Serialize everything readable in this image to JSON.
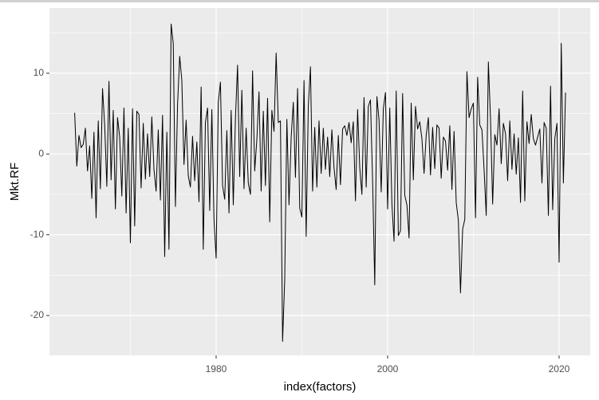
{
  "chart_data": {
    "type": "line",
    "xlabel": "index(factors)",
    "ylabel": "Mkt.RF",
    "color": "#000000",
    "grid": true,
    "xlim": [
      1960.56,
      2023.63
    ],
    "ylim": [
      -24.93,
      18.08
    ],
    "xticks": [
      1980,
      2000,
      2020
    ],
    "yticks": [
      -20,
      -10,
      0,
      10
    ],
    "x_minor_breaks": [
      1970,
      1990,
      2010
    ],
    "y_minor_breaks": [
      -15,
      -5,
      5,
      15
    ],
    "x": [
      1963.5,
      1963.75,
      1964,
      1964.25,
      1964.5,
      1964.75,
      1965,
      1965.25,
      1965.5,
      1965.75,
      1966,
      1966.25,
      1966.5,
      1966.75,
      1967,
      1967.25,
      1967.5,
      1967.75,
      1968,
      1968.25,
      1968.5,
      1968.75,
      1969,
      1969.25,
      1969.5,
      1969.75,
      1970,
      1970.25,
      1970.5,
      1970.75,
      1971,
      1971.25,
      1971.5,
      1971.75,
      1972,
      1972.25,
      1972.5,
      1972.75,
      1973,
      1973.25,
      1973.5,
      1973.75,
      1974,
      1974.25,
      1974.5,
      1974.75,
      1975,
      1975.25,
      1975.5,
      1975.75,
      1976,
      1976.25,
      1976.5,
      1976.75,
      1977,
      1977.25,
      1977.5,
      1977.75,
      1978,
      1978.25,
      1978.5,
      1978.75,
      1979,
      1979.25,
      1979.5,
      1979.75,
      1980,
      1980.25,
      1980.5,
      1980.75,
      1981,
      1981.25,
      1981.5,
      1981.75,
      1982,
      1982.25,
      1982.5,
      1982.75,
      1983,
      1983.25,
      1983.5,
      1983.75,
      1984,
      1984.25,
      1984.5,
      1984.75,
      1985,
      1985.25,
      1985.5,
      1985.75,
      1986,
      1986.25,
      1986.5,
      1986.75,
      1987,
      1987.25,
      1987.5,
      1987.75,
      1988,
      1988.25,
      1988.5,
      1988.75,
      1989,
      1989.25,
      1989.5,
      1989.75,
      1990,
      1990.25,
      1990.5,
      1990.75,
      1991,
      1991.25,
      1991.5,
      1991.75,
      1992,
      1992.25,
      1992.5,
      1992.75,
      1993,
      1993.25,
      1993.5,
      1993.75,
      1994,
      1994.25,
      1994.5,
      1994.75,
      1995,
      1995.25,
      1995.5,
      1995.75,
      1996,
      1996.25,
      1996.5,
      1996.75,
      1997,
      1997.25,
      1997.5,
      1997.75,
      1998,
      1998.25,
      1998.5,
      1998.75,
      1999,
      1999.25,
      1999.5,
      1999.75,
      2000,
      2000.25,
      2000.5,
      2000.75,
      2001,
      2001.25,
      2001.5,
      2001.75,
      2002,
      2002.25,
      2002.5,
      2002.75,
      2003,
      2003.25,
      2003.5,
      2003.75,
      2004,
      2004.25,
      2004.5,
      2004.75,
      2005,
      2005.25,
      2005.5,
      2005.75,
      2006,
      2006.25,
      2006.5,
      2006.75,
      2007,
      2007.25,
      2007.5,
      2007.75,
      2008,
      2008.25,
      2008.5,
      2008.75,
      2009,
      2009.25,
      2009.5,
      2009.75,
      2010,
      2010.25,
      2010.5,
      2010.75,
      2011,
      2011.25,
      2011.5,
      2011.75,
      2012,
      2012.25,
      2012.5,
      2012.75,
      2013,
      2013.25,
      2013.5,
      2013.75,
      2014,
      2014.25,
      2014.5,
      2014.75,
      2015,
      2015.25,
      2015.5,
      2015.75,
      2016,
      2016.25,
      2016.5,
      2016.75,
      2017,
      2017.25,
      2017.5,
      2017.75,
      2018,
      2018.25,
      2018.5,
      2018.75,
      2019,
      2019.25,
      2019.5,
      2019.75,
      2020,
      2020.25,
      2020.5,
      2020.75
    ],
    "values": [
      5.1,
      -1.5,
      2.3,
      0.8,
      1.2,
      3.2,
      -2.1,
      1.0,
      -5.5,
      2.7,
      -7.9,
      4.1,
      -4.3,
      8.1,
      3.6,
      -4.0,
      9.0,
      -3.2,
      5.4,
      -6.8,
      4.5,
      2.1,
      -5.2,
      5.7,
      -7.3,
      3.2,
      -11.0,
      5.6,
      -8.9,
      5.3,
      4.9,
      -4.2,
      3.8,
      -3.1,
      2.5,
      -2.8,
      4.6,
      -1.9,
      -4.6,
      3.0,
      -5.7,
      4.8,
      -12.7,
      2.7,
      -11.8,
      16.1,
      13.7,
      -6.5,
      6.1,
      12.1,
      9.1,
      -1.3,
      4.2,
      -2.7,
      -4.1,
      2.2,
      -3.3,
      1.5,
      -5.9,
      8.3,
      -11.8,
      3.9,
      5.7,
      -7.0,
      5.5,
      -8.1,
      -12.9,
      6.4,
      8.9,
      -3.9,
      -5.6,
      2.9,
      -7.3,
      5.4,
      -6.3,
      4.4,
      11.0,
      -2.8,
      7.9,
      -4.3,
      3.2,
      -3.6,
      -5.0,
      10.3,
      -2.1,
      1.8,
      7.7,
      -4.6,
      5.3,
      -3.9,
      6.9,
      -8.4,
      5.4,
      2.8,
      12.5,
      3.9,
      4.1,
      -23.2,
      -15.5,
      4.3,
      -6.3,
      2.0,
      6.4,
      -2.9,
      8.1,
      -6.7,
      -7.8,
      9.1,
      -10.2,
      5.9,
      10.8,
      -4.6,
      3.3,
      -4.1,
      4.1,
      -2.4,
      3.2,
      -1.9,
      2.1,
      -2.8,
      3.0,
      -1.7,
      -4.4,
      2.3,
      -3.8,
      3.1,
      3.5,
      2.3,
      3.9,
      1.4,
      4.0,
      -5.8,
      5.5,
      -1.7,
      -5.0,
      7.0,
      -4.1,
      5.9,
      6.7,
      -3.4,
      -16.2,
      7.1,
      4.2,
      -4.7,
      5.6,
      7.6,
      -6.8,
      5.7,
      -6.2,
      -10.8,
      7.8,
      -10.1,
      -9.5,
      7.5,
      -5.1,
      -6.3,
      -10.4,
      6.3,
      -3.2,
      5.9,
      3.1,
      4.0,
      1.9,
      -2.4,
      2.3,
      4.5,
      -2.6,
      3.3,
      -1.8,
      3.6,
      3.2,
      -3.0,
      2.1,
      1.6,
      -2.0,
      3.5,
      -4.4,
      2.8,
      -6.0,
      -8.2,
      -17.2,
      -9.3,
      -8.1,
      10.2,
      4.5,
      5.6,
      6.3,
      -7.9,
      9.5,
      3.6,
      3.0,
      -1.9,
      -7.6,
      11.4,
      4.4,
      -6.2,
      2.4,
      1.1,
      5.6,
      -1.2,
      3.8,
      2.5,
      -3.3,
      4.1,
      -1.9,
      2.5,
      -2.5,
      2.0,
      -6.0,
      7.8,
      -5.8,
      4.0,
      1.3,
      4.9,
      1.9,
      1.1,
      2.1,
      3.1,
      -3.6,
      3.9,
      3.2,
      -7.6,
      8.4,
      -6.9,
      1.9,
      3.8,
      -13.4,
      13.7,
      -3.6,
      7.6
    ]
  }
}
